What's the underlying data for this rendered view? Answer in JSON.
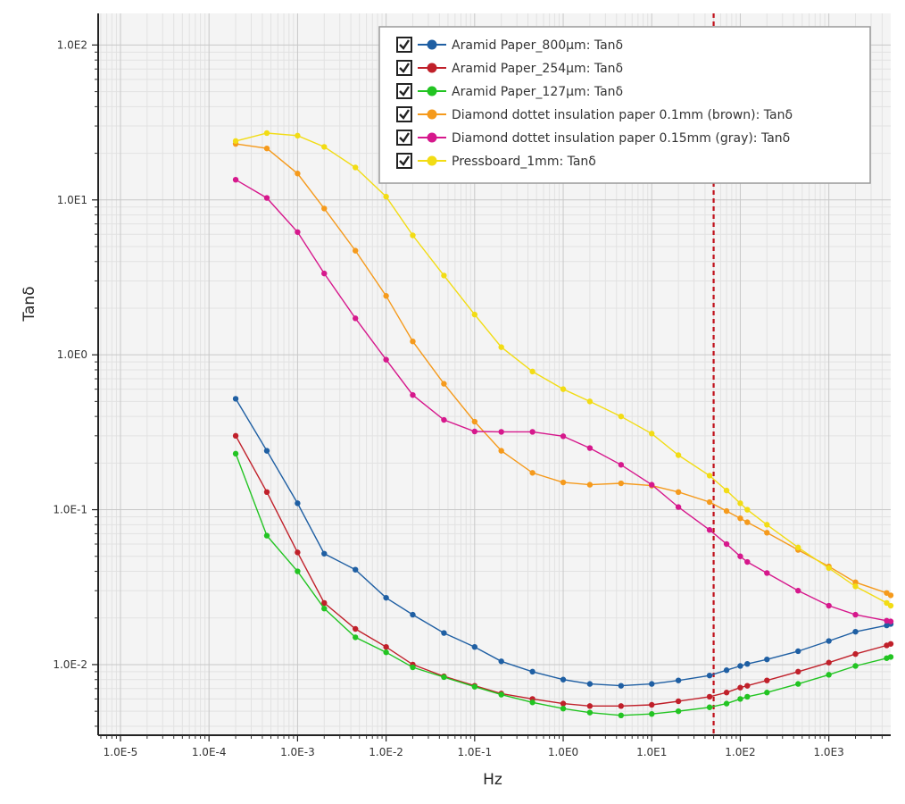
{
  "chart_data": {
    "type": "line",
    "title": "",
    "xlabel": "Hz",
    "ylabel": "Tanδ",
    "x_scale": "log",
    "y_scale": "log",
    "xlim": [
      5.6e-06,
      5000
    ],
    "ylim": [
      0.0035,
      160
    ],
    "grid": true,
    "legend_position": "top-right",
    "x_tick_labels": [
      "1.0E-5",
      "1.0E-4",
      "1.0E-3",
      "1.0E-2",
      "1.0E-1",
      "1.0E0",
      "1.0E1",
      "1.0E2",
      "1.0E3"
    ],
    "y_tick_labels": [
      "1.0E2",
      "1.0E1",
      "1.0E0",
      "1.0E-1",
      "1.0E-2"
    ],
    "marker_line_hz": 50,
    "marker_line_color": "#c0101a",
    "series": [
      {
        "name": "Aramid Paper_800μm: Tanδ",
        "color": "#1f5fa3",
        "x": [
          0.0002,
          0.00045,
          0.001,
          0.002,
          0.0045,
          0.01,
          0.02,
          0.045,
          0.1,
          0.2,
          0.45,
          1,
          2,
          4.5,
          10,
          20,
          45,
          70,
          100,
          120,
          200,
          450,
          1000,
          2000,
          4500,
          5000
        ],
        "y": [
          0.52,
          0.24,
          0.11,
          0.052,
          0.041,
          0.027,
          0.021,
          0.016,
          0.013,
          0.0105,
          0.009,
          0.008,
          0.0075,
          0.0073,
          0.0075,
          0.0079,
          0.0085,
          0.0092,
          0.0098,
          0.0101,
          0.0108,
          0.0122,
          0.0142,
          0.0163,
          0.0179,
          0.0183
        ]
      },
      {
        "name": "Aramid Paper_254μm: Tanδ",
        "color": "#c0202a",
        "x": [
          0.0002,
          0.00045,
          0.001,
          0.002,
          0.0045,
          0.01,
          0.02,
          0.045,
          0.1,
          0.2,
          0.45,
          1,
          2,
          4.5,
          10,
          20,
          45,
          70,
          100,
          120,
          200,
          450,
          1000,
          2000,
          4500,
          5000
        ],
        "y": [
          0.3,
          0.13,
          0.053,
          0.025,
          0.017,
          0.013,
          0.01,
          0.0084,
          0.0073,
          0.0065,
          0.006,
          0.0056,
          0.0054,
          0.0054,
          0.0055,
          0.0058,
          0.0062,
          0.0066,
          0.0071,
          0.0073,
          0.0079,
          0.009,
          0.0103,
          0.0117,
          0.0133,
          0.0136
        ]
      },
      {
        "name": "Aramid Paper_127μm: Tanδ",
        "color": "#22c422",
        "x": [
          0.0002,
          0.00045,
          0.001,
          0.002,
          0.0045,
          0.01,
          0.02,
          0.045,
          0.1,
          0.2,
          0.45,
          1,
          2,
          4.5,
          10,
          20,
          45,
          70,
          100,
          120,
          200,
          450,
          1000,
          2000,
          4500,
          5000
        ],
        "y": [
          0.23,
          0.068,
          0.04,
          0.023,
          0.015,
          0.012,
          0.0096,
          0.0083,
          0.0072,
          0.0064,
          0.0057,
          0.0052,
          0.0049,
          0.0047,
          0.0048,
          0.005,
          0.0053,
          0.0056,
          0.006,
          0.0062,
          0.0066,
          0.0075,
          0.0086,
          0.0098,
          0.011,
          0.0112
        ]
      },
      {
        "name": "Diamond dottet insulation paper 0.1mm (brown): Tanδ",
        "color": "#f59a1c",
        "x": [
          0.0002,
          0.00045,
          0.001,
          0.002,
          0.0045,
          0.01,
          0.02,
          0.045,
          0.1,
          0.2,
          0.45,
          1,
          2,
          4.5,
          10,
          20,
          45,
          70,
          100,
          120,
          200,
          450,
          1000,
          2000,
          4500,
          5000
        ],
        "y": [
          23,
          21.5,
          14.8,
          8.8,
          4.7,
          2.4,
          1.22,
          0.65,
          0.37,
          0.24,
          0.173,
          0.15,
          0.145,
          0.148,
          0.143,
          0.13,
          0.112,
          0.098,
          0.088,
          0.083,
          0.071,
          0.055,
          0.043,
          0.034,
          0.029,
          0.028
        ]
      },
      {
        "name": "Diamond dottet insulation paper 0.15mm (gray): Tanδ",
        "color": "#d6188c",
        "x": [
          0.0002,
          0.00045,
          0.001,
          0.002,
          0.0045,
          0.01,
          0.02,
          0.045,
          0.1,
          0.2,
          0.45,
          1,
          2,
          4.5,
          10,
          20,
          45,
          70,
          100,
          120,
          200,
          450,
          1000,
          2000,
          4500,
          5000
        ],
        "y": [
          13.5,
          10.3,
          6.2,
          3.35,
          1.72,
          0.93,
          0.55,
          0.38,
          0.32,
          0.318,
          0.318,
          0.298,
          0.25,
          0.195,
          0.145,
          0.104,
          0.074,
          0.06,
          0.05,
          0.046,
          0.039,
          0.03,
          0.024,
          0.021,
          0.0192,
          0.019
        ]
      },
      {
        "name": "Pressboard_1mm: Tanδ",
        "color": "#f2dc14",
        "x": [
          0.0002,
          0.00045,
          0.001,
          0.002,
          0.0045,
          0.01,
          0.02,
          0.045,
          0.1,
          0.2,
          0.45,
          1,
          2,
          4.5,
          10,
          20,
          45,
          70,
          100,
          120,
          200,
          450,
          1000,
          2000,
          4500,
          5000
        ],
        "y": [
          24,
          27,
          26,
          22,
          16.2,
          10.5,
          5.9,
          3.25,
          1.82,
          1.12,
          0.78,
          0.6,
          0.5,
          0.4,
          0.31,
          0.225,
          0.166,
          0.133,
          0.11,
          0.1,
          0.08,
          0.057,
          0.042,
          0.032,
          0.025,
          0.024
        ]
      }
    ]
  },
  "legend": {
    "items": [
      {
        "label": "Aramid Paper_800μm: Tanδ",
        "checked": true
      },
      {
        "label": "Aramid Paper_254μm: Tanδ",
        "checked": true
      },
      {
        "label": "Aramid Paper_127μm: Tanδ",
        "checked": true
      },
      {
        "label": "Diamond dottet insulation paper 0.1mm (brown): Tanδ",
        "checked": true
      },
      {
        "label": "Diamond dottet insulation paper 0.15mm (gray): Tanδ",
        "checked": true
      },
      {
        "label": "Pressboard_1mm: Tanδ",
        "checked": true
      }
    ]
  }
}
